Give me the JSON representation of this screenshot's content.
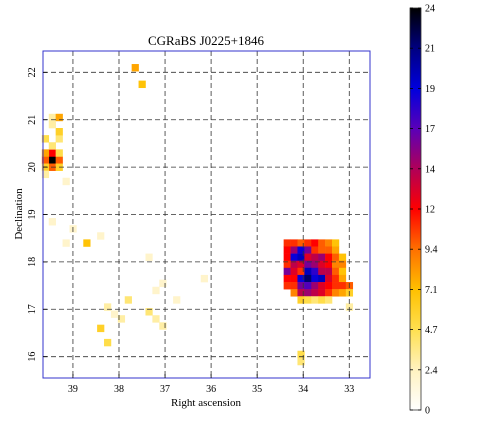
{
  "chart_data": {
    "type": "heatmap",
    "title": "CGRaBS J0225+1846",
    "xlabel": "Right ascension",
    "ylabel": "Declination",
    "xlim": [
      39.65,
      32.55
    ],
    "ylim": [
      15.55,
      22.45
    ],
    "x_ticks": [
      39,
      38,
      37,
      36,
      35,
      34,
      33
    ],
    "y_ticks": [
      16,
      17,
      18,
      19,
      20,
      21,
      22
    ],
    "grid": true,
    "colorbar": {
      "ticks": [
        "0",
        "2.4",
        "4.7",
        "7.1",
        "9.4",
        "12",
        "14",
        "17",
        "19",
        "21",
        "24"
      ],
      "min": 0,
      "max": 24
    },
    "colormap": [
      "#ffffff",
      "#fff2c0",
      "#ffe050",
      "#ffc000",
      "#ff7000",
      "#ff0000",
      "#b00058",
      "#5a00b8",
      "#0000dd",
      "#000080",
      "#000000"
    ],
    "cells": [
      [
        39.45,
        20.15,
        24
      ],
      [
        39.6,
        20.15,
        10
      ],
      [
        39.3,
        20.15,
        10
      ],
      [
        39.45,
        20.3,
        12
      ],
      [
        39.6,
        20.3,
        8
      ],
      [
        39.3,
        20.3,
        5
      ],
      [
        39.45,
        20.0,
        10
      ],
      [
        39.6,
        20.0,
        6
      ],
      [
        39.3,
        20.0,
        6
      ],
      [
        39.45,
        20.45,
        4
      ],
      [
        39.6,
        20.6,
        5
      ],
      [
        39.3,
        20.6,
        4
      ],
      [
        39.3,
        20.75,
        6
      ],
      [
        39.45,
        21.05,
        3
      ],
      [
        39.3,
        21.05,
        8
      ],
      [
        39.45,
        20.9,
        3
      ],
      [
        39.6,
        19.85,
        3
      ],
      [
        39.15,
        19.7,
        2
      ],
      [
        37.65,
        22.1,
        8
      ],
      [
        37.5,
        21.75,
        7
      ],
      [
        38.7,
        18.4,
        7
      ],
      [
        38.4,
        18.55,
        2
      ],
      [
        39.0,
        18.7,
        2
      ],
      [
        39.45,
        18.85,
        2
      ],
      [
        39.15,
        18.4,
        2
      ],
      [
        37.35,
        18.1,
        2
      ],
      [
        36.15,
        17.65,
        2
      ],
      [
        36.75,
        17.2,
        2
      ],
      [
        34.35,
        18.4,
        11
      ],
      [
        34.2,
        18.4,
        11
      ],
      [
        34.05,
        18.4,
        10
      ],
      [
        33.9,
        18.4,
        11
      ],
      [
        33.75,
        18.4,
        12
      ],
      [
        33.6,
        18.4,
        10
      ],
      [
        33.45,
        18.4,
        9
      ],
      [
        33.3,
        18.4,
        7
      ],
      [
        34.35,
        18.25,
        12
      ],
      [
        34.2,
        18.25,
        15
      ],
      [
        34.05,
        18.25,
        19
      ],
      [
        33.9,
        18.25,
        16
      ],
      [
        33.75,
        18.25,
        11
      ],
      [
        33.6,
        18.25,
        10
      ],
      [
        33.45,
        18.25,
        10
      ],
      [
        33.3,
        18.25,
        8
      ],
      [
        34.35,
        18.1,
        12
      ],
      [
        34.2,
        18.1,
        19
      ],
      [
        34.05,
        18.1,
        20
      ],
      [
        33.9,
        18.1,
        13
      ],
      [
        33.75,
        18.1,
        14
      ],
      [
        33.6,
        18.1,
        15
      ],
      [
        33.45,
        18.1,
        12
      ],
      [
        33.3,
        18.1,
        10
      ],
      [
        33.15,
        18.1,
        7
      ],
      [
        34.35,
        17.95,
        11
      ],
      [
        34.2,
        17.95,
        14
      ],
      [
        34.05,
        17.95,
        13
      ],
      [
        33.9,
        17.95,
        16
      ],
      [
        33.75,
        17.95,
        15
      ],
      [
        33.6,
        17.95,
        13
      ],
      [
        33.45,
        17.95,
        12
      ],
      [
        33.3,
        17.95,
        9
      ],
      [
        33.15,
        17.95,
        9
      ],
      [
        34.35,
        17.8,
        16
      ],
      [
        34.2,
        17.8,
        13
      ],
      [
        34.05,
        17.8,
        11
      ],
      [
        33.9,
        17.8,
        20
      ],
      [
        33.75,
        17.8,
        18
      ],
      [
        33.6,
        17.8,
        14
      ],
      [
        33.45,
        17.8,
        14
      ],
      [
        33.3,
        17.8,
        10
      ],
      [
        33.15,
        17.8,
        7
      ],
      [
        34.35,
        17.65,
        12
      ],
      [
        34.2,
        17.65,
        12
      ],
      [
        34.05,
        17.65,
        19
      ],
      [
        33.9,
        17.65,
        22
      ],
      [
        33.75,
        17.65,
        19
      ],
      [
        33.6,
        17.65,
        20
      ],
      [
        33.45,
        17.65,
        13
      ],
      [
        33.3,
        17.65,
        11
      ],
      [
        33.15,
        17.65,
        8
      ],
      [
        34.35,
        17.5,
        11
      ],
      [
        34.2,
        17.5,
        11
      ],
      [
        34.05,
        17.5,
        16
      ],
      [
        33.9,
        17.5,
        17
      ],
      [
        33.75,
        17.5,
        15
      ],
      [
        33.6,
        17.5,
        13
      ],
      [
        33.45,
        17.5,
        12
      ],
      [
        33.3,
        17.5,
        11
      ],
      [
        33.15,
        17.5,
        11
      ],
      [
        33.0,
        17.5,
        10
      ],
      [
        34.2,
        17.35,
        9
      ],
      [
        34.05,
        17.35,
        14
      ],
      [
        33.9,
        17.35,
        15
      ],
      [
        33.75,
        17.35,
        14
      ],
      [
        33.6,
        17.35,
        13
      ],
      [
        33.45,
        17.35,
        11
      ],
      [
        33.3,
        17.35,
        9
      ],
      [
        33.15,
        17.35,
        8
      ],
      [
        33.0,
        17.35,
        6
      ],
      [
        34.05,
        17.2,
        6
      ],
      [
        33.9,
        17.2,
        5
      ],
      [
        33.75,
        17.2,
        4
      ],
      [
        33.6,
        17.2,
        5
      ],
      [
        33.45,
        17.2,
        4
      ],
      [
        33.0,
        17.05,
        3
      ],
      [
        34.05,
        16.05,
        5
      ],
      [
        34.05,
        15.9,
        4
      ],
      [
        38.4,
        16.6,
        6
      ],
      [
        38.25,
        16.3,
        5
      ],
      [
        37.95,
        16.8,
        3
      ],
      [
        37.35,
        16.95,
        4
      ],
      [
        37.2,
        16.8,
        3
      ],
      [
        37.05,
        16.65,
        3
      ],
      [
        38.25,
        17.05,
        3
      ],
      [
        38.1,
        16.9,
        2
      ],
      [
        37.8,
        17.2,
        4
      ],
      [
        37.2,
        17.4,
        2
      ],
      [
        37.05,
        17.55,
        2
      ]
    ]
  }
}
